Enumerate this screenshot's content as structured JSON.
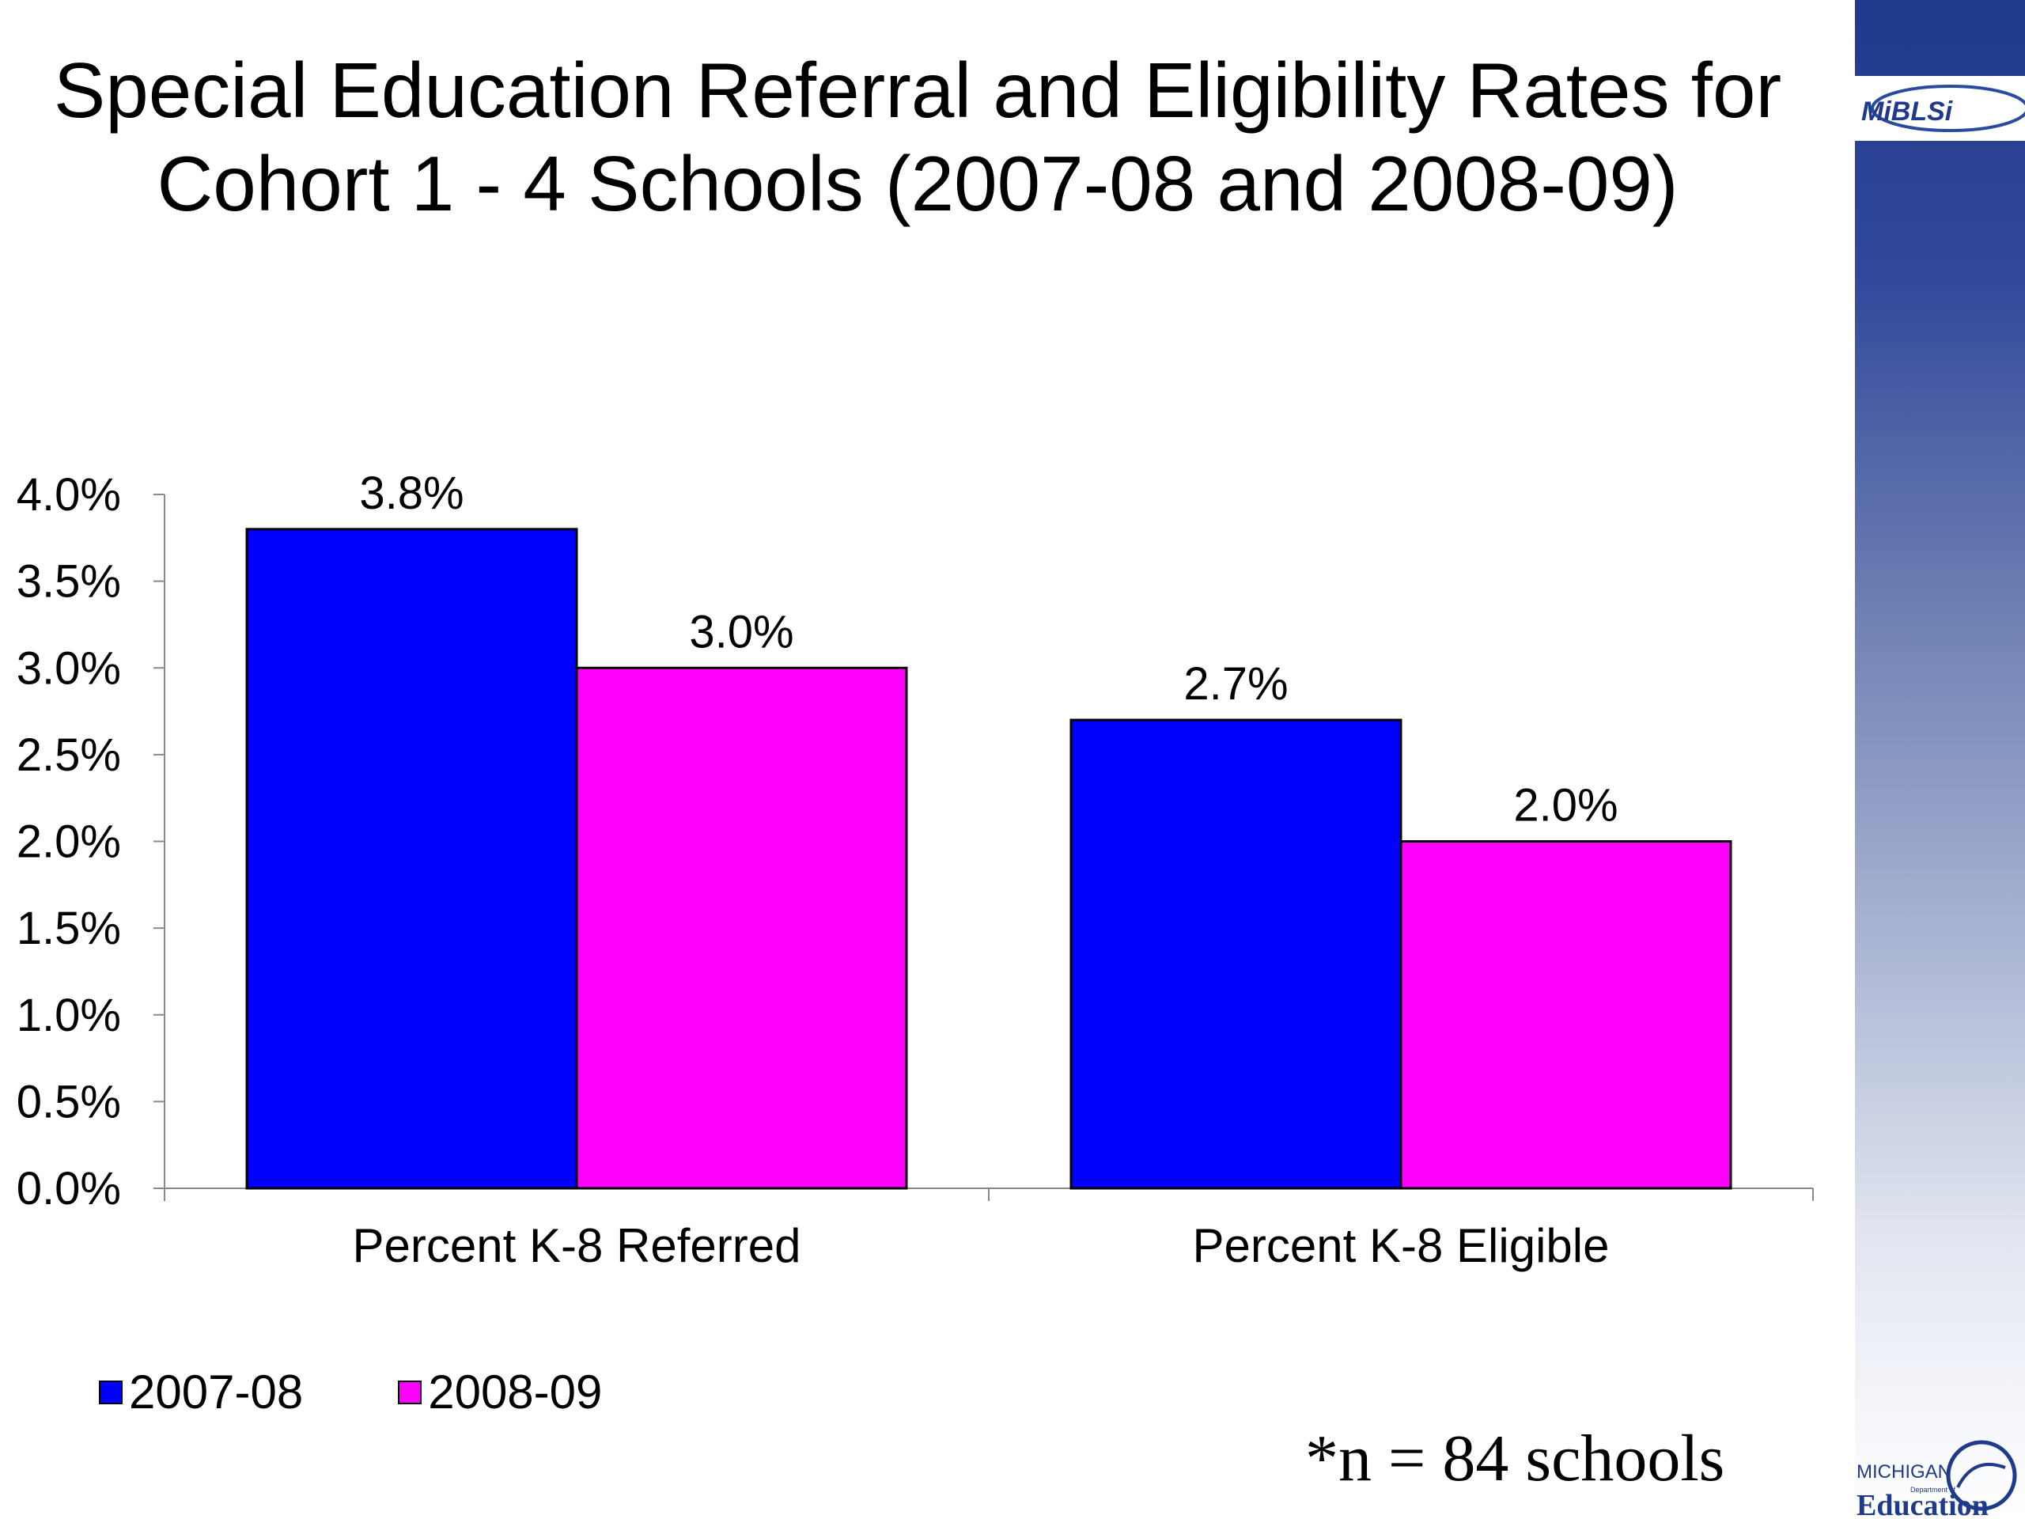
{
  "title": {
    "line1": "Special Education Referral and Eligibility Rates for",
    "line2": "Cohort 1 - 4 Schools (2007-08 and 2008-09)"
  },
  "logos": {
    "top_logo_text": "MiBLSi",
    "bottom_logo_line1": "MICHIGAN",
    "bottom_logo_line2": "Department of",
    "bottom_logo_line3": "Education"
  },
  "footnote": "*n = 84 schools",
  "colors": {
    "series_2007_08": "#0000ff",
    "series_2008_09": "#ff00ff",
    "band_dark": "#1f3a8a"
  },
  "chart_data": {
    "type": "bar",
    "title": "Special Education Referral and Eligibility Rates for Cohort 1 - 4 Schools (2007-08 and 2008-09)",
    "categories": [
      "Percent K-8 Referred",
      "Percent K-8 Eligible"
    ],
    "series": [
      {
        "name": "2007-08",
        "values": [
          3.8,
          2.7
        ],
        "labels": [
          "3.8%",
          "2.7%"
        ],
        "color": "#0000ff"
      },
      {
        "name": "2008-09",
        "values": [
          3.0,
          2.0
        ],
        "labels": [
          "3.0%",
          "2.0%"
        ],
        "color": "#ff00ff"
      }
    ],
    "ylim": [
      0,
      4
    ],
    "yticks": [
      0,
      0.5,
      1,
      1.5,
      2,
      2.5,
      3,
      3.5,
      4
    ],
    "ytick_labels": [
      "0.0%",
      "0.5%",
      "1.0%",
      "1.5%",
      "2.0%",
      "2.5%",
      "3.0%",
      "3.5%",
      "4.0%"
    ],
    "xlabel": "",
    "ylabel": "",
    "grid": false,
    "legend": "bottom-left"
  }
}
